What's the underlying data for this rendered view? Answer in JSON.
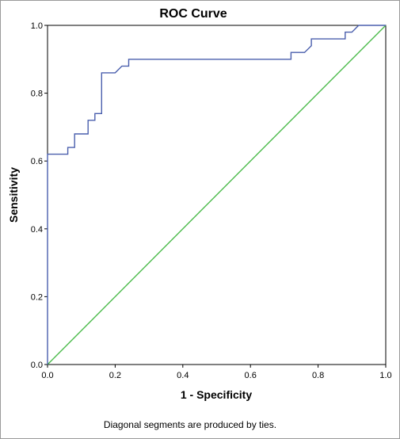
{
  "chart_data": {
    "type": "line",
    "title": "ROC Curve",
    "xlabel": "1 - Specificity",
    "ylabel": "Sensitivity",
    "xlim": [
      0.0,
      1.0
    ],
    "ylim": [
      0.0,
      1.0
    ],
    "x_ticks": [
      "0.0",
      "0.2",
      "0.4",
      "0.6",
      "0.8",
      "1.0"
    ],
    "y_ticks": [
      "0.0",
      "0.2",
      "0.4",
      "0.6",
      "0.8",
      "1.0"
    ],
    "grid": false,
    "footnote": "Diagonal segments are produced by ties.",
    "series": [
      {
        "color": "#4a5fad",
        "points": [
          [
            0.0,
            0.0
          ],
          [
            0.0,
            0.62
          ],
          [
            0.06,
            0.62
          ],
          [
            0.06,
            0.64
          ],
          [
            0.08,
            0.64
          ],
          [
            0.08,
            0.68
          ],
          [
            0.12,
            0.68
          ],
          [
            0.12,
            0.72
          ],
          [
            0.14,
            0.72
          ],
          [
            0.14,
            0.74
          ],
          [
            0.16,
            0.74
          ],
          [
            0.16,
            0.86
          ],
          [
            0.2,
            0.86
          ],
          [
            0.22,
            0.88
          ],
          [
            0.24,
            0.88
          ],
          [
            0.24,
            0.9
          ],
          [
            0.72,
            0.9
          ],
          [
            0.72,
            0.92
          ],
          [
            0.76,
            0.92
          ],
          [
            0.78,
            0.94
          ],
          [
            0.78,
            0.96
          ],
          [
            0.88,
            0.96
          ],
          [
            0.88,
            0.98
          ],
          [
            0.9,
            0.98
          ],
          [
            0.92,
            1.0
          ],
          [
            1.0,
            1.0
          ]
        ]
      },
      {
        "color": "#4cbb4c",
        "points": [
          [
            0.0,
            0.0
          ],
          [
            1.0,
            1.0
          ]
        ]
      }
    ]
  }
}
